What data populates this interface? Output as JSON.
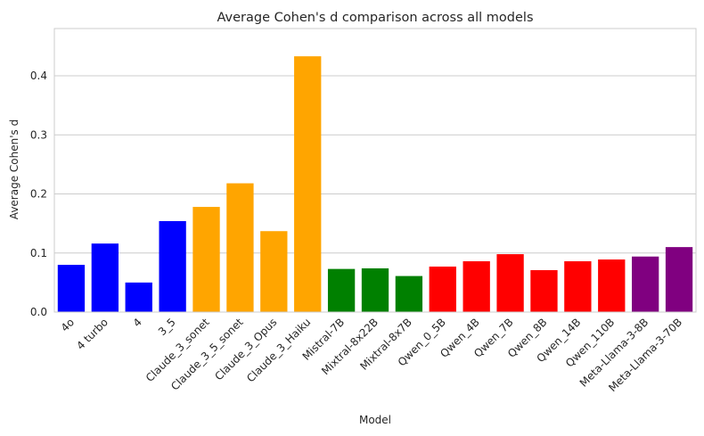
{
  "chart_data": {
    "type": "bar",
    "title": "Average Cohen's d comparison across all models",
    "xlabel": "Model",
    "ylabel": "Average Cohen's d",
    "ylim": [
      0,
      0.48
    ],
    "yticks": [
      "0.0",
      "0.1",
      "0.2",
      "0.3",
      "0.4"
    ],
    "grid": true,
    "categories": [
      "4o",
      "4 turbo",
      "4",
      "3_5",
      "Claude_3_sonet",
      "Claude_3_5_sonet",
      "Claude_3_Opus",
      "Claude_3_Haiku",
      "Mistral-7B",
      "Mixtral-8x22B",
      "Mixtral-8x7B",
      "Qwen_0_5B",
      "Qwen_4B",
      "Qwen_7B",
      "Qwen_8B",
      "Qwen_14B",
      "Qwen_110B",
      "Meta-Llama-3-8B",
      "Meta-Llama-3-70B"
    ],
    "values": [
      0.08,
      0.116,
      0.05,
      0.154,
      0.178,
      0.218,
      0.137,
      0.433,
      0.073,
      0.074,
      0.061,
      0.077,
      0.086,
      0.098,
      0.071,
      0.086,
      0.089,
      0.094,
      0.11
    ],
    "colors": [
      "#0000ff",
      "#0000ff",
      "#0000ff",
      "#0000ff",
      "#ffa500",
      "#ffa500",
      "#ffa500",
      "#ffa500",
      "#008000",
      "#008000",
      "#008000",
      "#ff0000",
      "#ff0000",
      "#ff0000",
      "#ff0000",
      "#ff0000",
      "#ff0000",
      "#800080",
      "#800080"
    ]
  }
}
